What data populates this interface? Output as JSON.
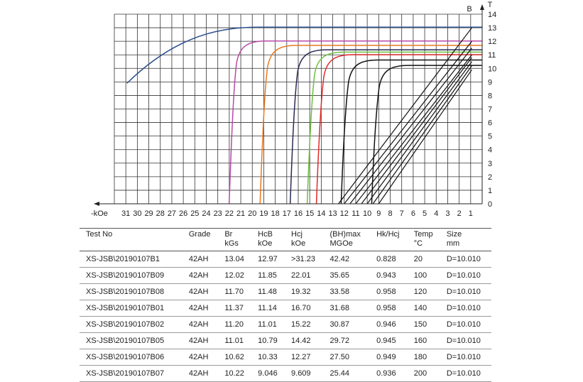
{
  "chart_data": {
    "type": "line",
    "x_axis_unit": "-kOe",
    "y_axis_unit": "T",
    "y_axis_name": "B",
    "x_ticks": [
      31,
      30,
      29,
      28,
      27,
      26,
      25,
      24,
      23,
      22,
      21,
      20,
      19,
      18,
      17,
      16,
      15,
      14,
      13,
      12,
      11,
      10,
      9,
      8,
      7,
      6,
      5,
      4,
      3,
      2,
      1
    ],
    "y_ticks": [
      0,
      1,
      2,
      3,
      4,
      5,
      6,
      7,
      8,
      9,
      10,
      11,
      12,
      13,
      14
    ],
    "xlim": [
      32,
      0
    ],
    "ylim": [
      0,
      14
    ],
    "grid": true,
    "series": [
      {
        "color": "#2b4f8c",
        "Br": 13.04,
        "Hcj": 31.23,
        "curve_start": [
          30.9,
          8.9
        ]
      },
      {
        "color": "#b84aa8",
        "Br": 12.02,
        "Hcj": 22.01
      },
      {
        "color": "#e8781e",
        "Br": 11.7,
        "Hcj": 19.32
      },
      {
        "color": "#2a2a55",
        "Br": 11.37,
        "Hcj": 16.7
      },
      {
        "color": "#6cbf3c",
        "Br": 11.2,
        "Hcj": 15.22
      },
      {
        "color": "#e02a2a",
        "Br": 11.01,
        "Hcj": 14.42
      },
      {
        "color": "#111111",
        "Br": 10.62,
        "Hcj": 12.27
      },
      {
        "color": "#111111",
        "Br": 10.22,
        "Hcj": 9.609
      }
    ],
    "load_lines": [
      {
        "from": [
          12.5,
          0
        ],
        "to": [
          0.9,
          13
        ]
      },
      {
        "from": [
          12.0,
          0
        ],
        "to": [
          0.9,
          12
        ]
      },
      {
        "from": [
          11.5,
          0
        ],
        "to": [
          0.9,
          11.5
        ]
      },
      {
        "from": [
          11.0,
          0
        ],
        "to": [
          0.9,
          11
        ]
      },
      {
        "from": [
          10.5,
          0
        ],
        "to": [
          0.9,
          10.8
        ]
      },
      {
        "from": [
          10.0,
          0
        ],
        "to": [
          0.9,
          10.5
        ]
      },
      {
        "from": [
          9.5,
          0
        ],
        "to": [
          0.9,
          10.2
        ]
      },
      {
        "from": [
          9.0,
          0
        ],
        "to": [
          0.9,
          9.9
        ]
      }
    ]
  },
  "table": {
    "headers": [
      [
        "Test No",
        ""
      ],
      [
        "Grade",
        ""
      ],
      [
        "Br",
        "kGs"
      ],
      [
        "HcB",
        "kOe"
      ],
      [
        "Hcj",
        "kOe"
      ],
      [
        "(BH)max",
        "MGOe"
      ],
      [
        "Hk/Hcj",
        ""
      ],
      [
        "Temp",
        "°C"
      ],
      [
        "Size",
        "mm"
      ]
    ],
    "rows": [
      [
        "XS-JSB\\20190107B1",
        "42AH",
        "13.04",
        "12.97",
        ">31.23",
        "42.42",
        "0.828",
        "20",
        "D=10.010"
      ],
      [
        "XS-JSB\\20190107B09",
        "42AH",
        "12.02",
        "11.85",
        "22.01",
        "35.65",
        "0.943",
        "100",
        "D=10.010"
      ],
      [
        "XS-JSB\\20190107B08",
        "42AH",
        "11.70",
        "11.48",
        "19.32",
        "33.58",
        "0.958",
        "120",
        "D=10.010"
      ],
      [
        "XS-JSB\\20190107B01",
        "42AH",
        "11.37",
        "11.14",
        "16.70",
        "31.68",
        "0.958",
        "140",
        "D=10.010"
      ],
      [
        "XS-JSB\\20190107B02",
        "42AH",
        "11.20",
        "11.01",
        "15.22",
        "30.87",
        "0.946",
        "150",
        "D=10.010"
      ],
      [
        "XS-JSB\\20190107B05",
        "42AH",
        "11.01",
        "10.79",
        "14.42",
        "29.72",
        "0.945",
        "160",
        "D=10.010"
      ],
      [
        "XS-JSB\\20190107B06",
        "42AH",
        "10.62",
        "10.33",
        "12.27",
        "27.50",
        "0.949",
        "180",
        "D=10.010"
      ],
      [
        "XS-JSB\\20190107B07",
        "42AH",
        "10.22",
        "9.046",
        "9.609",
        "25.44",
        "0.936",
        "200",
        "D=10.010"
      ]
    ]
  }
}
